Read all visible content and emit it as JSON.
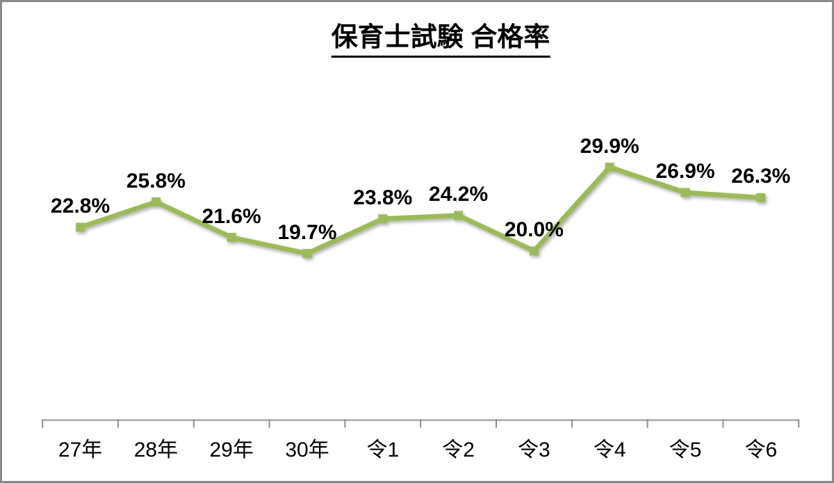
{
  "page": {
    "background": "#ffffff",
    "frame_border_color": "#8a8a8a"
  },
  "chart_data": {
    "type": "line",
    "title": "保育士試験 合格率",
    "categories": [
      "27年",
      "28年",
      "29年",
      "30年",
      "令1",
      "令2",
      "令3",
      "令4",
      "令5",
      "令6"
    ],
    "values": [
      22.8,
      25.8,
      21.6,
      19.7,
      23.8,
      24.2,
      20.0,
      29.9,
      26.9,
      26.3
    ],
    "data_labels": [
      "22.8%",
      "25.8%",
      "21.6%",
      "19.7%",
      "23.8%",
      "24.2%",
      "20.0%",
      "29.9%",
      "26.9%",
      "26.3%"
    ],
    "xlabel": "",
    "ylabel": "",
    "ylim": [
      0,
      42
    ],
    "grid": false,
    "legend_position": "none",
    "line_color": "#9BBB59",
    "marker_shape": "square",
    "axis_line_color": "#A6A6A6",
    "tick_color": "#8C8C8C",
    "label_color": "#000000"
  }
}
